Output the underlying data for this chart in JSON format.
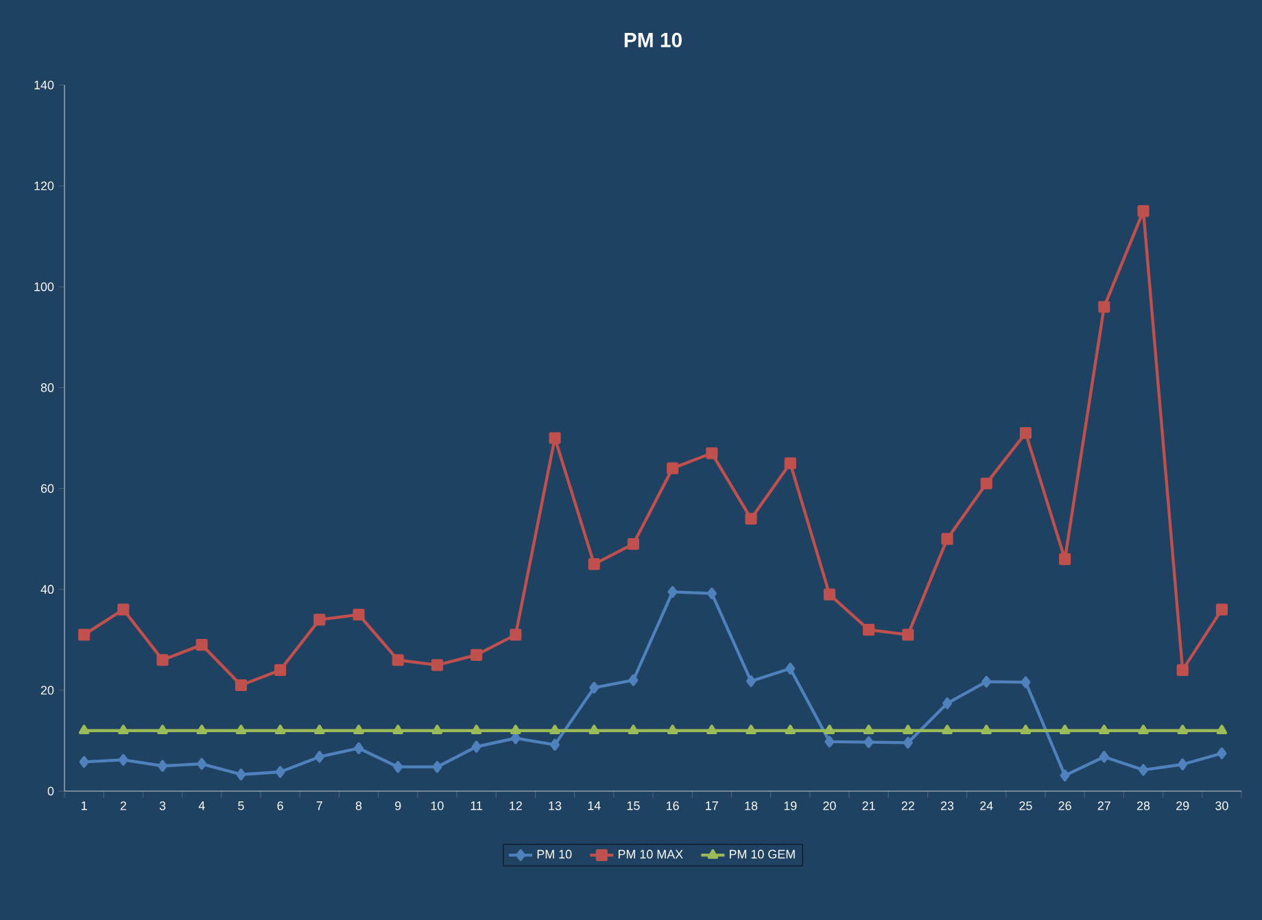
{
  "chart_data": {
    "type": "line",
    "title": "PM 10",
    "categories": [
      "1",
      "2",
      "3",
      "4",
      "5",
      "6",
      "7",
      "8",
      "9",
      "10",
      "11",
      "12",
      "13",
      "14",
      "15",
      "16",
      "17",
      "18",
      "19",
      "20",
      "21",
      "22",
      "23",
      "24",
      "25",
      "26",
      "27",
      "28",
      "29",
      "30"
    ],
    "series": [
      {
        "name": "PM 10",
        "color": "#4f81bd",
        "marker": "diamond",
        "values": [
          5.8,
          6.2,
          5,
          5.4,
          3.3,
          3.8,
          6.8,
          8.5,
          4.8,
          4.8,
          8.8,
          10.5,
          9.2,
          20.5,
          22,
          39.5,
          39.2,
          21.8,
          24.3,
          9.8,
          9.7,
          9.6,
          17.4,
          21.7,
          21.6,
          3.1,
          6.8,
          4.2,
          5.3,
          7.5
        ]
      },
      {
        "name": "PM 10 MAX",
        "color": "#c0504d",
        "marker": "square",
        "values": [
          31,
          36,
          26,
          29,
          21,
          24,
          34,
          35,
          26,
          25,
          27,
          31,
          70,
          45,
          49,
          64,
          67,
          54,
          65,
          39,
          32,
          31,
          50,
          61,
          71,
          46,
          96,
          115,
          24,
          36
        ]
      },
      {
        "name": "PM 10 GEM",
        "color": "#9bbb59",
        "marker": "triangle",
        "values": [
          12,
          12,
          12,
          12,
          12,
          12,
          12,
          12,
          12,
          12,
          12,
          12,
          12,
          12,
          12,
          12,
          12,
          12,
          12,
          12,
          12,
          12,
          12,
          12,
          12,
          12,
          12,
          12,
          12,
          12
        ]
      }
    ],
    "ylim": [
      0,
      140
    ],
    "yticks": [
      0,
      20,
      40,
      60,
      80,
      100,
      120,
      140
    ],
    "grid": false,
    "legend": "bottom",
    "line_style": "solid"
  }
}
